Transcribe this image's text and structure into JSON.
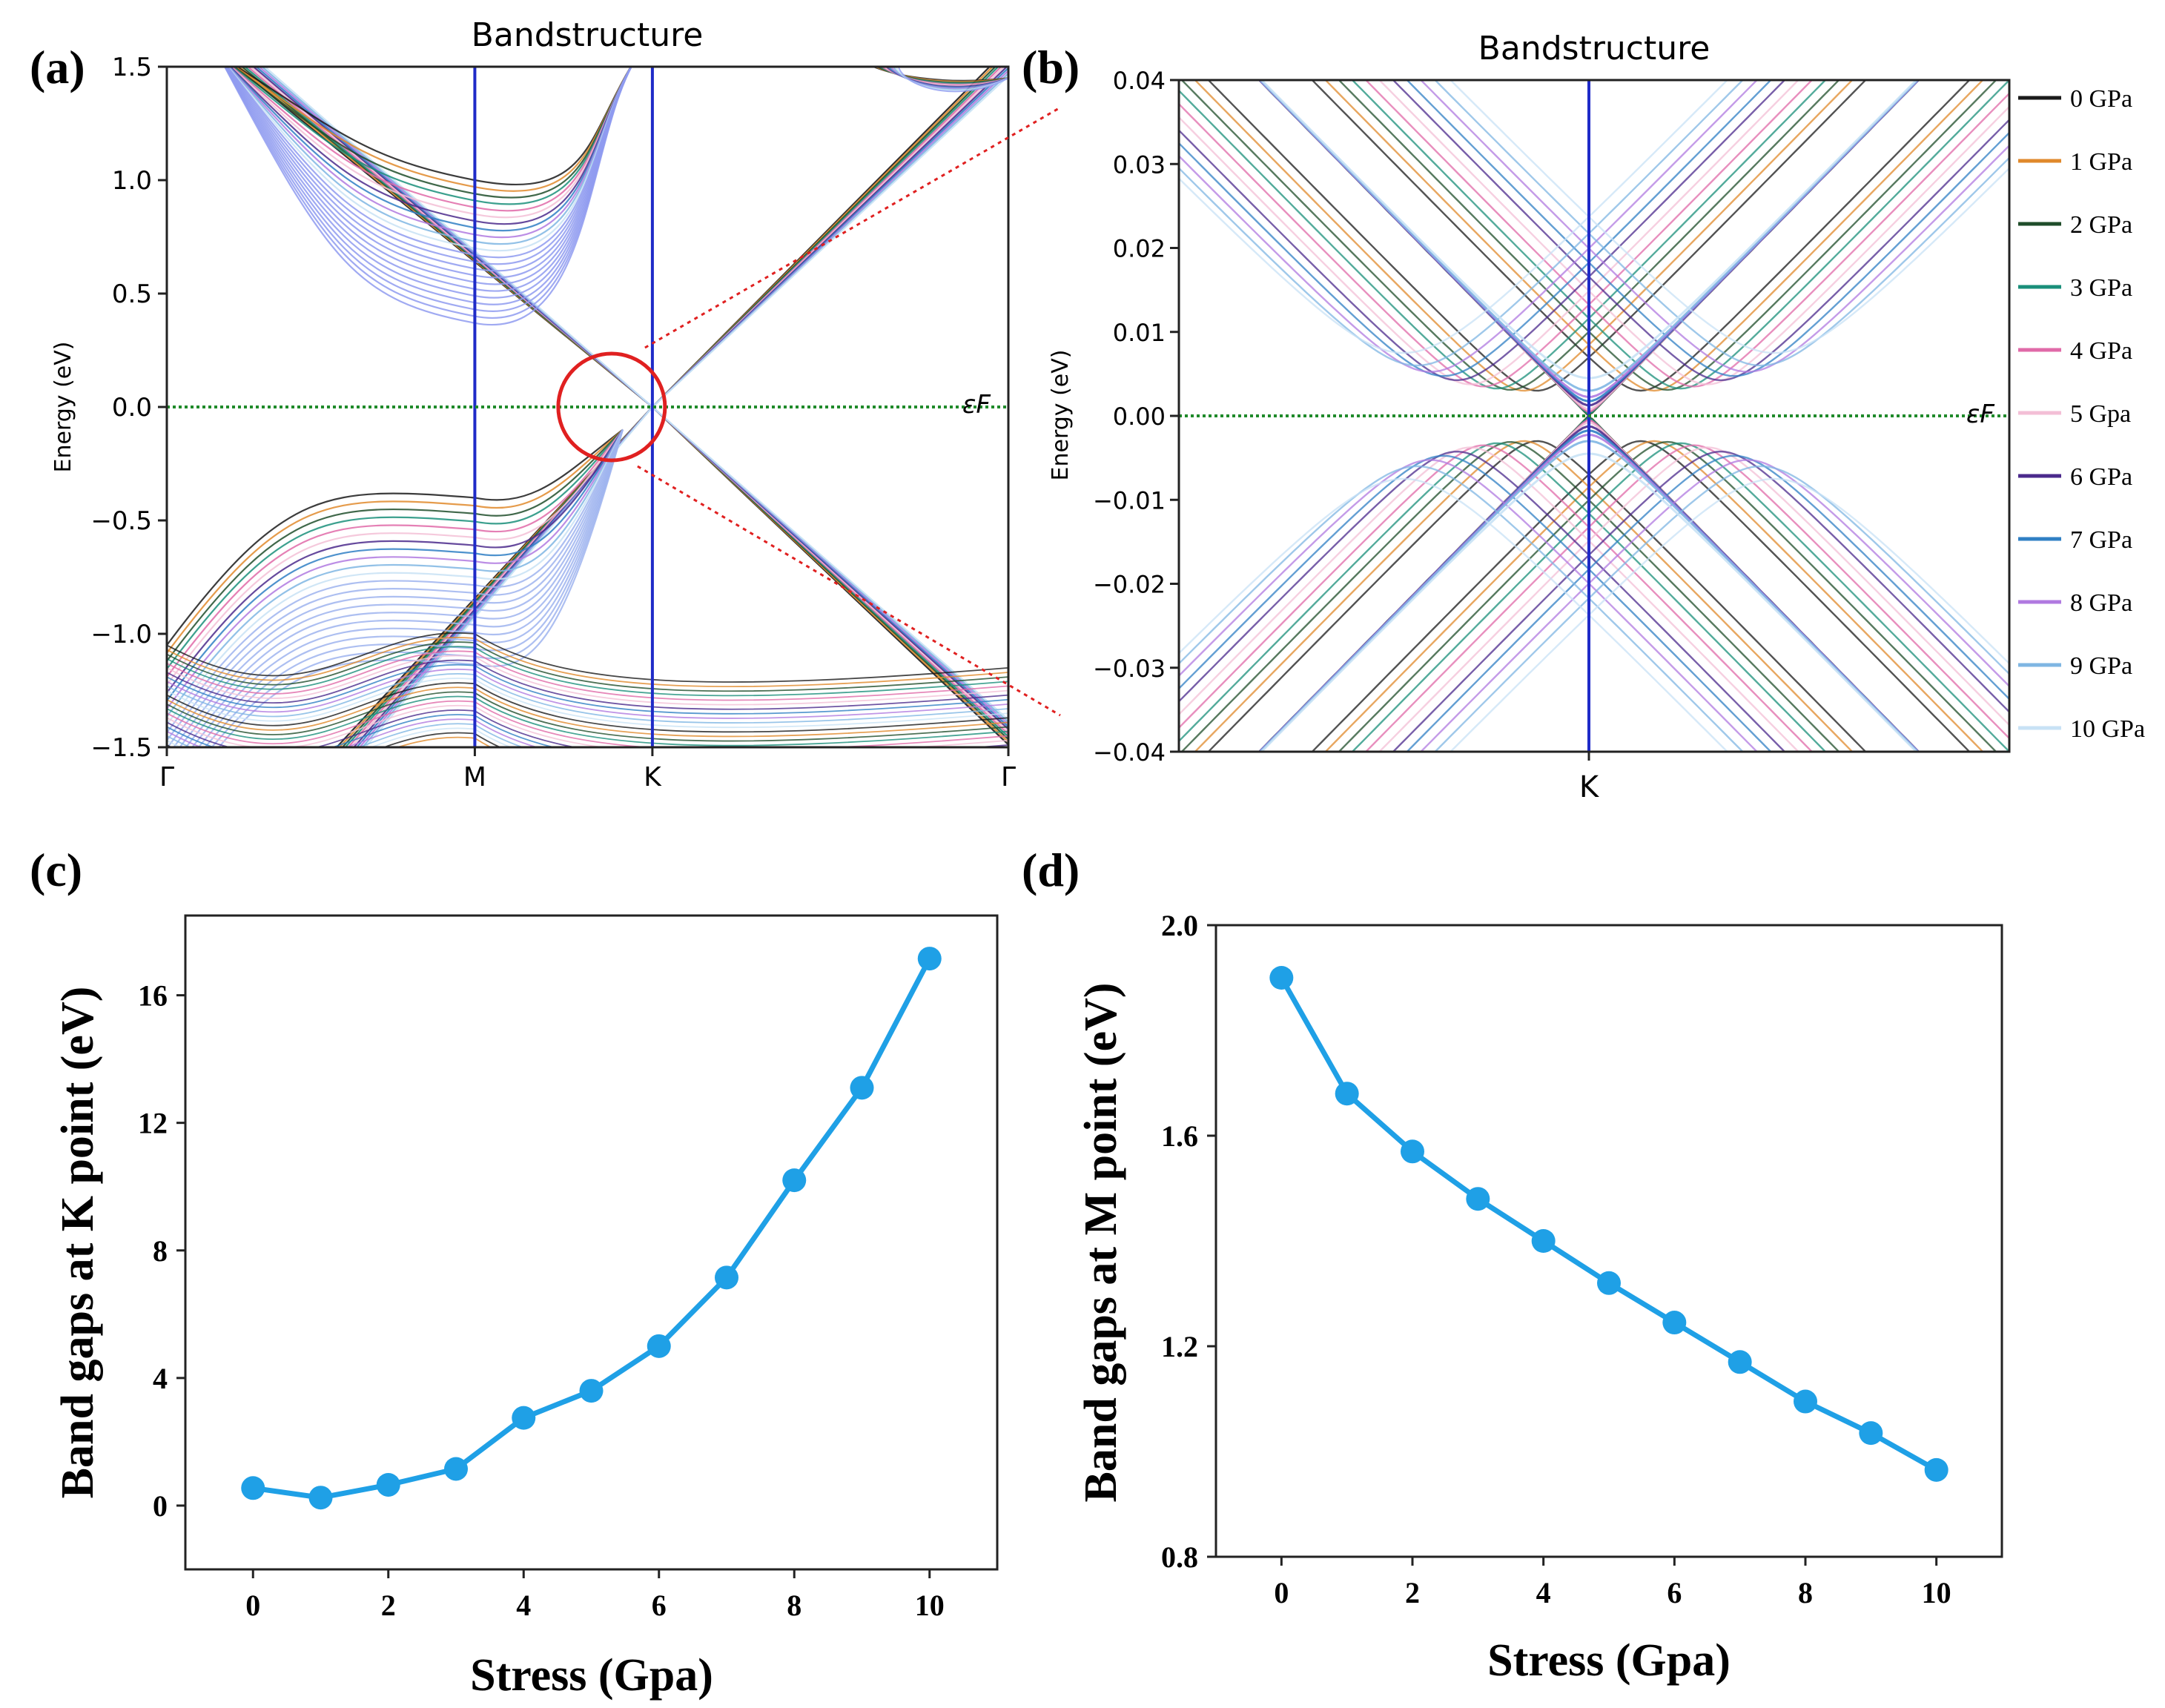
{
  "palette": {
    "gpa_colors": [
      "#1a1a1a",
      "#e0892b",
      "#1f4d2a",
      "#1a8f7a",
      "#e06aa8",
      "#f3bfd6",
      "#4b2a8c",
      "#2f7fc4",
      "#b07ae0",
      "#7fb6e3",
      "#c8e2f5"
    ],
    "kline": "#1f2bc8",
    "fermi": "#1f8a2a",
    "circle": "#e02020",
    "zoomline": "#e02020",
    "scatter": "#1fa0e6"
  },
  "chart_data": [
    {
      "panel": "a",
      "panel_label": "(a)",
      "type": "line",
      "title": "Bandstructure",
      "ylabel": "Energy (eV)",
      "ylim": [
        -1.5,
        1.5
      ],
      "yticks": [
        "1.5",
        "1.0",
        "0.5",
        "0.0",
        "−0.5",
        "−1.0",
        "−1.5"
      ],
      "ytick_values": [
        1.5,
        1.0,
        0.5,
        0.0,
        -0.5,
        -1.0,
        -1.5
      ],
      "xticks": [
        "Γ",
        "M",
        "K",
        "Γ"
      ],
      "xtick_positions": [
        0,
        0.366,
        0.577,
        1.0
      ],
      "fermi_label": "εF",
      "fermi_sub": "F",
      "series_names": [
        "0 GPa",
        "1 GPa",
        "2 GPa",
        "3 GPa",
        "4 GPa",
        "5 Gpa",
        "6 GPa",
        "7 GPa",
        "8 GPa",
        "9 GPa",
        "10 GPa"
      ]
    },
    {
      "panel": "b",
      "panel_label": "(b)",
      "type": "line",
      "title": "Bandstructure",
      "ylabel": "Energy (eV)",
      "ylim": [
        -0.04,
        0.04
      ],
      "yticks": [
        "0.04",
        "0.03",
        "0.02",
        "0.01",
        "0.00",
        "−0.01",
        "−0.02",
        "−0.03",
        "−0.04"
      ],
      "ytick_values": [
        0.04,
        0.03,
        0.02,
        0.01,
        0.0,
        -0.01,
        -0.02,
        -0.03,
        -0.04
      ],
      "xticks": [
        "K"
      ],
      "fermi_label": "εF",
      "fermi_sub": "F",
      "legend_position": "right",
      "legend": [
        "0  GPa",
        "1  GPa",
        "2  GPa",
        "3  GPa",
        "4  GPa",
        "5  Gpa",
        "6  GPa",
        "7  GPa",
        "8  GPa",
        "9  GPa",
        "10 GPa"
      ],
      "k_gap_eV": [
        0.0,
        0.0,
        0.0002,
        0.0005,
        0.001,
        0.0015,
        0.0025,
        0.0035,
        0.0045,
        0.006,
        0.009
      ]
    },
    {
      "panel": "c",
      "panel_label": "(c)",
      "type": "scatter",
      "xlabel": "Stress (Gpa)",
      "ylabel": "Band gaps at K point (eV)",
      "xlim": [
        -1,
        11
      ],
      "ylim": [
        -2,
        18.5
      ],
      "xticks": [
        0,
        2,
        4,
        6,
        8,
        10
      ],
      "yticks": [
        0,
        4,
        8,
        12,
        16
      ],
      "x": [
        0,
        1,
        2,
        3,
        4,
        5,
        6,
        7,
        8,
        9,
        10
      ],
      "y": [
        0.55,
        0.25,
        0.65,
        1.15,
        2.75,
        3.6,
        5.0,
        7.15,
        10.2,
        13.1,
        17.15
      ]
    },
    {
      "panel": "d",
      "panel_label": "(d)",
      "type": "scatter",
      "xlabel": "Stress (Gpa)",
      "ylabel": "Band gaps at M point (eV)",
      "xlim": [
        -1,
        11
      ],
      "ylim": [
        0.8,
        2.0
      ],
      "xticks": [
        0,
        2,
        4,
        6,
        8,
        10
      ],
      "yticks": [
        "0.8",
        "1.2",
        "1.6",
        "2.0"
      ],
      "ytick_values": [
        0.8,
        1.2,
        1.6,
        2.0
      ],
      "x": [
        0,
        1,
        2,
        3,
        4,
        5,
        6,
        7,
        8,
        9,
        10
      ],
      "y": [
        1.9,
        1.68,
        1.57,
        1.48,
        1.4,
        1.32,
        1.245,
        1.17,
        1.095,
        1.035,
        0.965
      ]
    }
  ]
}
